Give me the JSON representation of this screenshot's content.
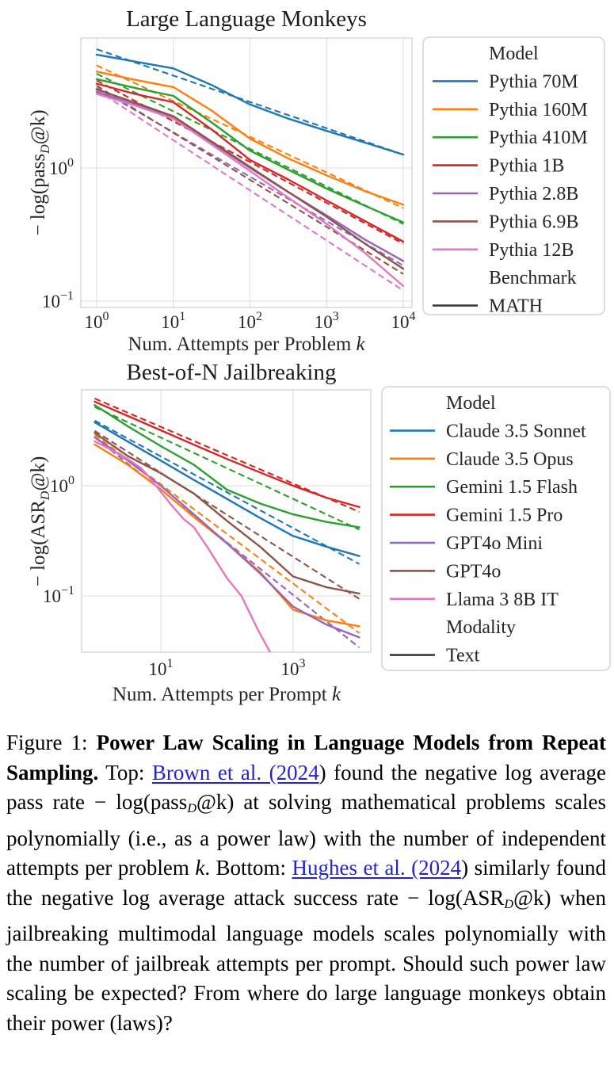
{
  "chart_data": [
    {
      "type": "line",
      "title": "Large Language Monkeys",
      "xlabel": {
        "main": "Num. Attempts per Problem ",
        "var": "k"
      },
      "ylabel": {
        "pre": "− log(pass",
        "sub": "D",
        "post": "@k)"
      },
      "x_scale": "log",
      "y_scale": "log",
      "x_tick_exponents": [
        0,
        1,
        2,
        3,
        4
      ],
      "y_tick_exponents": [
        0,
        -1
      ],
      "xlim_log": [
        -0.21,
        4.12
      ],
      "ylim_log": [
        -1.05,
        0.98
      ],
      "grid": true,
      "legend_position": "right",
      "legend_headers": [
        "Model",
        "Benchmark"
      ],
      "series": [
        {
          "name": "Pythia 70M",
          "color": "#1f77b4",
          "x": [
            1,
            3.16,
            10,
            31.6,
            100,
            316,
            1000,
            3162,
            10000
          ],
          "y": [
            7.1,
            6.3,
            5.6,
            4.2,
            3.0,
            2.35,
            1.9,
            1.55,
            1.26
          ],
          "fit": {
            "x": [
              1,
              10000
            ],
            "y": [
              7.8,
              1.26
            ]
          }
        },
        {
          "name": "Pythia 160M",
          "color": "#ff7f0e",
          "x": [
            1,
            3.16,
            10,
            31.6,
            100,
            316,
            1000,
            3162,
            10000
          ],
          "y": [
            5.3,
            4.6,
            4.05,
            2.7,
            1.66,
            1.18,
            0.88,
            0.67,
            0.53
          ],
          "fit": {
            "x": [
              1,
              10000
            ],
            "y": [
              5.9,
              0.5
            ]
          }
        },
        {
          "name": "Pythia 410M",
          "color": "#2ca02c",
          "x": [
            1,
            3.16,
            10,
            31.6,
            100,
            316,
            1000,
            3162,
            10000
          ],
          "y": [
            4.65,
            4.0,
            3.48,
            2.2,
            1.35,
            0.97,
            0.7,
            0.52,
            0.39
          ],
          "fit": {
            "x": [
              1,
              10000
            ],
            "y": [
              5.1,
              0.38
            ]
          }
        },
        {
          "name": "Pythia 1B",
          "color": "#d62728",
          "x": [
            1,
            3.16,
            10,
            31.6,
            100,
            316,
            1000,
            3162,
            10000
          ],
          "y": [
            4.3,
            3.6,
            3.12,
            1.95,
            1.15,
            0.82,
            0.57,
            0.4,
            0.28
          ],
          "fit": {
            "x": [
              1,
              10000
            ],
            "y": [
              4.55,
              0.27
            ]
          }
        },
        {
          "name": "Pythia 2.8B",
          "color": "#9467bd",
          "x": [
            1,
            3.16,
            10,
            31.6,
            100,
            316,
            1000,
            3162,
            10000
          ],
          "y": [
            3.73,
            3.0,
            2.4,
            1.55,
            1.0,
            0.66,
            0.44,
            0.29,
            0.2
          ],
          "fit": {
            "x": [
              1,
              10000
            ],
            "y": [
              4.0,
              0.185
            ]
          }
        },
        {
          "name": "Pythia 6.9B",
          "color": "#8c564b",
          "x": [
            1,
            3.16,
            10,
            31.6,
            100,
            316,
            1000,
            3162,
            10000
          ],
          "y": [
            3.9,
            3.1,
            2.45,
            1.58,
            1.02,
            0.66,
            0.43,
            0.27,
            0.175
          ],
          "fit": {
            "x": [
              1,
              10000
            ],
            "y": [
              4.15,
              0.16
            ]
          }
        },
        {
          "name": "Pythia 12B",
          "color": "#e377c2",
          "x": [
            1,
            3.16,
            10,
            31.6,
            100,
            316,
            1000,
            3162,
            10000
          ],
          "y": [
            3.6,
            2.95,
            2.35,
            1.5,
            0.95,
            0.6,
            0.38,
            0.23,
            0.13
          ],
          "fit": {
            "x": [
              1,
              10000
            ],
            "y": [
              3.85,
              0.12
            ]
          }
        }
      ],
      "legend_rows": [
        {
          "header": "Model"
        },
        {
          "label": "Pythia 70M",
          "color": "#1f77b4"
        },
        {
          "label": "Pythia 160M",
          "color": "#ff7f0e"
        },
        {
          "label": "Pythia 410M",
          "color": "#2ca02c"
        },
        {
          "label": "Pythia 1B",
          "color": "#d62728"
        },
        {
          "label": "Pythia 2.8B",
          "color": "#9467bd"
        },
        {
          "label": "Pythia 6.9B",
          "color": "#8c564b"
        },
        {
          "label": "Pythia 12B",
          "color": "#e377c2"
        },
        {
          "header": "Benchmark"
        },
        {
          "label": "MATH",
          "color": "#3b3b3b"
        }
      ]
    },
    {
      "type": "line",
      "title": "Best-of-N Jailbreaking",
      "xlabel": {
        "main": "Num. Attempts per Prompt ",
        "var": "k"
      },
      "ylabel": {
        "pre": "− log(ASR",
        "sub": "D",
        "post": "@k)"
      },
      "x_scale": "log",
      "y_scale": "log",
      "x_tick_exponents": [
        1,
        3
      ],
      "y_tick_exponents": [
        0,
        -1
      ],
      "xlim_log": [
        -0.2,
        4.17
      ],
      "ylim_log": [
        -1.51,
        0.87
      ],
      "grid": true,
      "legend_position": "right",
      "legend_headers": [
        "Model",
        "Modality"
      ],
      "series": [
        {
          "name": "Claude 3.5 Sonnet",
          "color": "#1f77b4",
          "x": [
            1,
            3.16,
            10,
            31.6,
            100,
            316,
            1000,
            3162,
            10000
          ],
          "y": [
            3.77,
            2.52,
            1.69,
            1.13,
            0.76,
            0.51,
            0.35,
            0.28,
            0.23
          ],
          "fit": {
            "x": [
              1,
              10000
            ],
            "y": [
              3.9,
              0.195
            ]
          }
        },
        {
          "name": "Claude 3.5 Opus",
          "color": "#ff7f0e",
          "x": [
            1,
            3.16,
            10,
            31.6,
            100,
            316,
            1000,
            3162,
            10000
          ],
          "y": [
            2.37,
            1.55,
            0.93,
            0.52,
            0.3,
            0.165,
            0.075,
            0.06,
            0.053
          ],
          "fit": {
            "x": [
              1,
              10000
            ],
            "y": [
              2.9,
              0.046
            ]
          }
        },
        {
          "name": "Gemini 1.5 Flash",
          "color": "#2ca02c",
          "x": [
            1,
            3.16,
            10,
            31.6,
            100,
            316,
            1000,
            3162,
            10000
          ],
          "y": [
            5.4,
            3.47,
            2.29,
            1.55,
            0.92,
            0.69,
            0.55,
            0.47,
            0.42
          ],
          "fit": {
            "x": [
              1,
              10000
            ],
            "y": [
              5.2,
              0.4
            ]
          }
        },
        {
          "name": "Gemini 1.5 Pro",
          "color": "#d62728",
          "x": [
            1,
            3.16,
            10,
            31.6,
            100,
            316,
            1000,
            3162,
            10000
          ],
          "y": [
            5.8,
            4.3,
            3.19,
            2.36,
            1.75,
            1.32,
            1.0,
            0.78,
            0.64
          ],
          "fit": {
            "x": [
              1,
              10000
            ],
            "y": [
              6.2,
              0.58
            ]
          }
        },
        {
          "name": "GPT4o Mini",
          "color": "#9467bd",
          "x": [
            1,
            3.16,
            10,
            31.6,
            100,
            316,
            1000,
            3162,
            10000
          ],
          "y": [
            2.75,
            1.7,
            1.0,
            0.55,
            0.3,
            0.16,
            0.08,
            0.055,
            0.042
          ],
          "fit": {
            "x": [
              1,
              10000
            ],
            "y": [
              2.75,
              0.034
            ]
          }
        },
        {
          "name": "GPT4o",
          "color": "#8c564b",
          "x": [
            1,
            3.16,
            10,
            31.6,
            100,
            316,
            1000,
            3162,
            10000
          ],
          "y": [
            3.03,
            1.86,
            1.3,
            0.85,
            0.48,
            0.28,
            0.15,
            0.12,
            0.105
          ],
          "fit": {
            "x": [
              1,
              10000
            ],
            "y": [
              3.15,
              0.094
            ]
          }
        },
        {
          "name": "Llama 3 8B IT",
          "color": "#e377c2",
          "x": [
            1,
            2,
            3.16,
            5,
            7,
            10,
            15,
            22,
            31.6,
            50,
            100,
            165,
            300,
            460
          ],
          "y": [
            2.53,
            2.05,
            1.75,
            1.45,
            1.15,
            0.88,
            0.65,
            0.5,
            0.42,
            0.28,
            0.145,
            0.1,
            0.048,
            0.03
          ],
          "fit": null
        }
      ],
      "legend_rows": [
        {
          "header": "Model"
        },
        {
          "label": "Claude 3.5 Sonnet",
          "color": "#1f77b4"
        },
        {
          "label": "Claude 3.5 Opus",
          "color": "#ff7f0e"
        },
        {
          "label": "Gemini 1.5 Flash",
          "color": "#2ca02c"
        },
        {
          "label": "Gemini 1.5 Pro",
          "color": "#d62728"
        },
        {
          "label": "GPT4o Mini",
          "color": "#9467bd"
        },
        {
          "label": "GPT4o",
          "color": "#8c564b"
        },
        {
          "label": "Llama 3 8B IT",
          "color": "#e377c2"
        },
        {
          "header": "Modality"
        },
        {
          "label": "Text",
          "color": "#3b3b3b"
        }
      ]
    }
  ],
  "colors": {
    "blue": "#1f77b4",
    "orange": "#ff7f0e",
    "green": "#2ca02c",
    "red": "#d62728",
    "purple": "#9467bd",
    "brown": "#8c564b",
    "pink": "#e377c2",
    "dark": "#3b3b3b",
    "grid": "#dcdcdc",
    "link": "#2424cf"
  },
  "caption": {
    "segments": [
      {
        "t": "Figure 1: "
      },
      {
        "t": "Power Law Scaling in Language Models from Repeat Sampling.",
        "b": true
      },
      {
        "t": "  Top: "
      },
      {
        "t": "Brown et al. (2024",
        "l": true
      },
      {
        "t": ") found the negative log average pass rate − log(pass"
      },
      {
        "t": "D",
        "sub": true
      },
      {
        "t": "@k) at solving mathematical problems scales polynomially (i.e., as a power law) with the number of independent attempts per problem "
      },
      {
        "t": "k",
        "i": true
      },
      {
        "t": ". Bottom: "
      },
      {
        "t": "Hughes et al. (2024",
        "l": true
      },
      {
        "t": ") similarly found the negative log average attack success rate − log(ASR"
      },
      {
        "t": "D",
        "sub": true
      },
      {
        "t": "@k) when jailbreaking multimodal language models scales polynomially with the number of jailbreak attempts per prompt. Should such power law scaling be expected? From where do large language monkeys obtain their power (laws)?"
      }
    ]
  }
}
